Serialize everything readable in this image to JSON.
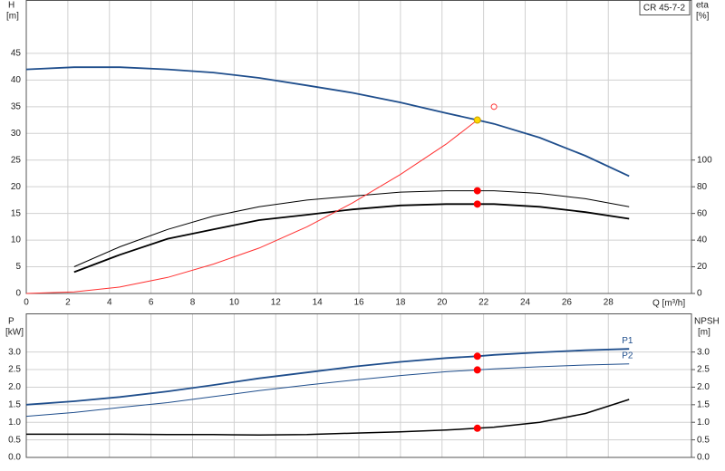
{
  "chart_data": [
    {
      "type": "line",
      "title": "CR 45-7-2",
      "ylabel": "H",
      "yunit": "[m]",
      "y2label": "eta",
      "y2unit": "[%]",
      "xlabel": "Q [m³/h]",
      "x": [
        0,
        2.3,
        4.5,
        6.8,
        9,
        11.2,
        13.5,
        15.7,
        18,
        20.2,
        21.7,
        22.5,
        24.7,
        26.9,
        29
      ],
      "xlim": [
        0,
        32
      ],
      "xticks": [
        0,
        2,
        4,
        6,
        8,
        10,
        12,
        14,
        16,
        18,
        20,
        22,
        24,
        26,
        28
      ],
      "ylim": [
        0,
        55
      ],
      "yticks": [
        0,
        5,
        10,
        15,
        20,
        25,
        30,
        35,
        40,
        45
      ],
      "y2lim": [
        0,
        220
      ],
      "y2ticks": [
        0,
        20,
        40,
        60,
        80,
        100
      ],
      "grid": true,
      "series": [
        {
          "color": "#1f4e8c",
          "line_width": 1.8,
          "values": [
            42.0,
            42.4,
            42.4,
            42.0,
            41.4,
            40.4,
            39.0,
            37.6,
            35.8,
            33.8,
            32.5,
            31.8,
            29.2,
            25.8,
            22.0
          ]
        },
        {
          "color": "#000000",
          "line_width": 1,
          "axis": "y2",
          "values": [
            null,
            20,
            35,
            48,
            58,
            65,
            70,
            73,
            76,
            77,
            77,
            77,
            75,
            71,
            65
          ]
        },
        {
          "color": "#000000",
          "line_width": 1.8,
          "axis": "y2",
          "values": [
            null,
            16,
            29,
            41,
            48,
            55,
            59,
            63,
            66,
            67,
            67,
            67,
            65,
            61,
            56
          ]
        },
        {
          "color": "#ff3030",
          "line_width": 1,
          "values": [
            0,
            0.3,
            1.2,
            3.0,
            5.5,
            8.5,
            12.5,
            17.0,
            22.3,
            28.0,
            32.5,
            null,
            null,
            null,
            null
          ]
        }
      ],
      "points": [
        {
          "x": 21.7,
          "y": 32.5,
          "color": "#ffd700"
        },
        {
          "x": 22.5,
          "y": 35,
          "color": "#ff3030",
          "open": true
        },
        {
          "x": 21.7,
          "y": 77,
          "axis": "y2",
          "color": "#ff0000"
        },
        {
          "x": 21.7,
          "y": 67,
          "axis": "y2",
          "color": "#ff0000"
        }
      ]
    },
    {
      "type": "line",
      "ylabel": "P",
      "yunit": "[kW]",
      "y2label": "NPSH",
      "y2unit": "[m]",
      "x": [
        0,
        2.3,
        4.5,
        6.8,
        9,
        11.2,
        13.5,
        15.7,
        18,
        20.2,
        21.7,
        22.5,
        24.7,
        26.9,
        29
      ],
      "xlim": [
        0,
        32
      ],
      "ylim": [
        0,
        4.1
      ],
      "yticks": [
        {
          "value": 0,
          "label": "0.0"
        },
        0.5,
        {
          "value": 1,
          "label": "1.0"
        },
        1.5,
        {
          "value": 2,
          "label": "2.0"
        },
        2.5,
        {
          "value": 3,
          "label": "3.0"
        }
      ],
      "y2lim": [
        0,
        4.1
      ],
      "y2ticks": [
        {
          "value": 0,
          "label": "0.0"
        },
        0.5,
        {
          "value": 1,
          "label": "1.0"
        },
        1.5,
        {
          "value": 2,
          "label": "2.0"
        },
        2.5,
        {
          "value": 3,
          "label": "3.0"
        }
      ],
      "grid": true,
      "series": [
        {
          "name": "P1",
          "color": "#1f4e8c",
          "line_width": 1.8,
          "values": [
            1.5,
            1.6,
            1.72,
            1.88,
            2.06,
            2.25,
            2.42,
            2.58,
            2.72,
            2.83,
            2.88,
            2.92,
            2.99,
            3.05,
            3.09
          ]
        },
        {
          "name": "P2",
          "color": "#1f4e8c",
          "line_width": 1,
          "values": [
            1.17,
            1.28,
            1.42,
            1.56,
            1.73,
            1.9,
            2.06,
            2.2,
            2.33,
            2.44,
            2.49,
            2.52,
            2.58,
            2.63,
            2.66
          ]
        },
        {
          "color": "#000000",
          "line_width": 1.5,
          "axis": "y2",
          "values": [
            0.66,
            0.66,
            0.66,
            0.65,
            0.65,
            0.64,
            0.65,
            0.69,
            0.73,
            0.78,
            0.83,
            0.86,
            1.0,
            1.25,
            1.65
          ]
        }
      ],
      "points": [
        {
          "x": 21.7,
          "y": 2.88,
          "color": "#ff0000"
        },
        {
          "x": 21.7,
          "y": 2.49,
          "color": "#ff0000"
        },
        {
          "x": 21.7,
          "y": 0.83,
          "axis": "y2",
          "color": "#ff0000"
        }
      ]
    }
  ]
}
